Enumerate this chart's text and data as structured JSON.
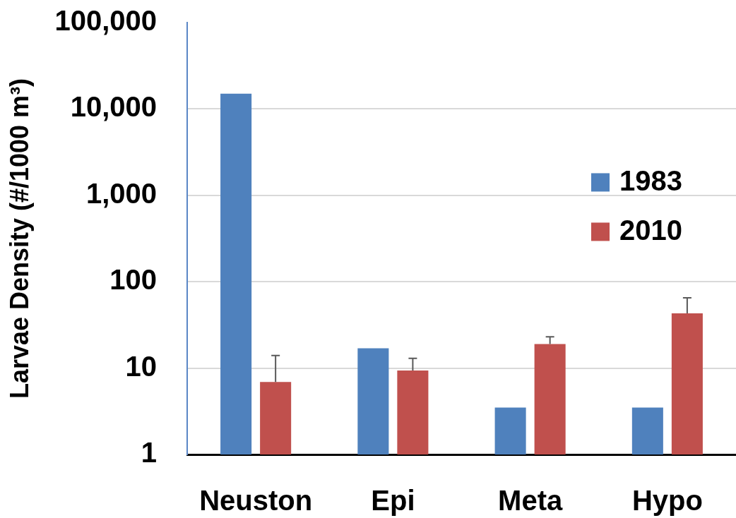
{
  "chart_data": {
    "type": "bar",
    "ylabel": "Larvae Density (#/1000 m³)",
    "categories": [
      "Neuston",
      "Epi",
      "Meta",
      "Hypo"
    ],
    "series": [
      {
        "name": "1983",
        "color": "#4f81bd",
        "values": [
          15000,
          17,
          3.5,
          3.5
        ]
      },
      {
        "name": "2010",
        "color": "#c0504d",
        "values": [
          6.9,
          9.4,
          19,
          43
        ],
        "errors": [
          [
            6.9,
            14
          ],
          [
            9.4,
            13
          ],
          [
            19,
            23
          ],
          [
            43,
            65
          ]
        ]
      }
    ],
    "log": true,
    "ylim": [
      1,
      100000
    ],
    "yticks": [
      1,
      10,
      100,
      {
        "value": 1000,
        "label": "1,000"
      },
      {
        "value": 10000,
        "label": "10,000"
      },
      {
        "value": 100000,
        "label": "100,000"
      }
    ],
    "grid": "y",
    "legend": "right"
  }
}
